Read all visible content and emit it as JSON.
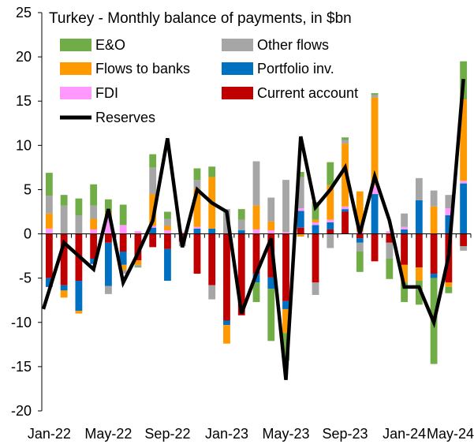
{
  "chart_data": {
    "type": "bar",
    "subtype": "stacked-bar-with-line",
    "title": "Turkey - Monthly balance of payments, in $bn",
    "xlabel": "",
    "ylabel": "",
    "ylim": [
      -20,
      25
    ],
    "yticks": [
      -20,
      -15,
      -10,
      -5,
      0,
      5,
      10,
      15,
      20,
      25
    ],
    "grid": false,
    "legend_position": "top-left",
    "categories": [
      "Jan-22",
      "Feb-22",
      "Mar-22",
      "Apr-22",
      "May-22",
      "Jun-22",
      "Jul-22",
      "Aug-22",
      "Sep-22",
      "Oct-22",
      "Nov-22",
      "Dec-22",
      "Jan-23",
      "Feb-23",
      "Mar-23",
      "Apr-23",
      "May-23",
      "Jun-23",
      "Jul-23",
      "Aug-23",
      "Sep-23",
      "Oct-23",
      "Nov-23",
      "Dec-23",
      "Jan-24",
      "Feb-24",
      "Mar-24",
      "Apr-24",
      "May-24"
    ],
    "x_tick_labels": [
      "Jan-22",
      "",
      "",
      "",
      "May-22",
      "",
      "",
      "",
      "Sep-22",
      "",
      "",
      "",
      "Jan-23",
      "",
      "",
      "",
      "May-23",
      "",
      "",
      "",
      "Sep-23",
      "",
      "",
      "",
      "Jan-24",
      "",
      "",
      "",
      "May-24"
    ],
    "series": [
      {
        "name": "Current account",
        "kind": "bar",
        "color": "#C00000",
        "values": [
          -5.0,
          -5.8,
          -5.3,
          -2.8,
          -1.0,
          -2.0,
          -3.0,
          -1.5,
          -1.7,
          -0.9,
          -4.5,
          -5.8,
          -9.8,
          -9.2,
          -4.5,
          -4.9,
          -7.6,
          0.7,
          -5.5,
          0.5,
          2.5,
          -0.5,
          -3.1,
          -1.0,
          -3.5,
          -3.8,
          -4.5,
          -5.5,
          -1.4
        ]
      },
      {
        "name": "Portfolio inv.",
        "kind": "bar",
        "color": "#0070C0",
        "values": [
          -1.0,
          -0.6,
          -3.4,
          -0.6,
          -4.9,
          -1.5,
          0.0,
          0.7,
          -3.6,
          0.0,
          0.6,
          0.6,
          -0.5,
          0.4,
          -1.0,
          -1.3,
          -0.9,
          1.9,
          1.0,
          0.8,
          0.3,
          -0.5,
          4.5,
          0.0,
          0.5,
          3.8,
          -0.5,
          2.1,
          5.7
        ]
      },
      {
        "name": "FDI",
        "kind": "bar",
        "color": "#FF99FF",
        "values": [
          0.6,
          0.0,
          0.0,
          0.5,
          1.9,
          1.0,
          0.3,
          0.2,
          0.4,
          0.2,
          0.2,
          0.0,
          0.0,
          0.0,
          0.5,
          0.4,
          0.2,
          0.3,
          0.3,
          0.3,
          0.3,
          0.3,
          1.0,
          0.3,
          0.3,
          0.0,
          0.0,
          0.8,
          0.3
        ]
      },
      {
        "name": "Flows to banks",
        "kind": "bar",
        "color": "#FF9900",
        "values": [
          1.7,
          -0.8,
          -0.3,
          1.2,
          0.5,
          -0.6,
          -0.5,
          3.6,
          0.5,
          0.0,
          4.3,
          5.8,
          -2.1,
          0.0,
          2.7,
          1.0,
          -2.7,
          -0.3,
          0.3,
          3.9,
          7.1,
          4.5,
          9.9,
          0.0,
          -2.0,
          -1.5,
          3.1,
          -0.5,
          9.2
        ]
      },
      {
        "name": "Other flows",
        "kind": "bar",
        "color": "#A6A6A6",
        "values": [
          2.0,
          3.2,
          2.1,
          1.5,
          -0.9,
          -0.4,
          -0.2,
          3.0,
          0.8,
          -0.5,
          1.0,
          -1.6,
          2.8,
          1.2,
          5.0,
          2.7,
          5.9,
          3.5,
          -1.4,
          -1.6,
          0.4,
          -1.0,
          0.3,
          -1.8,
          1.5,
          2.5,
          1.8,
          1.5,
          -0.5
        ]
      },
      {
        "name": "E&O",
        "kind": "bar",
        "color": "#70AD47",
        "values": [
          2.6,
          1.2,
          1.9,
          2.4,
          1.5,
          2.3,
          -0.1,
          1.5,
          0.8,
          0.0,
          1.3,
          1.2,
          0.0,
          1.2,
          -2.2,
          -5.9,
          -3.1,
          0.6,
          2.0,
          2.6,
          0.3,
          -2.3,
          0.2,
          -2.3,
          -2.2,
          -2.7,
          -9.7,
          -0.7,
          4.3
        ]
      },
      {
        "name": "Reserves",
        "kind": "line",
        "color": "#000000",
        "values": [
          -8.5,
          -1.0,
          -2.5,
          -4.0,
          2.8,
          -5.5,
          -2.2,
          1.5,
          10.8,
          -1.5,
          5.0,
          3.5,
          2.5,
          -9.0,
          -4.5,
          -0.5,
          -16.5,
          11.0,
          3.0,
          5.0,
          7.5,
          0.0,
          6.5,
          1.5,
          -6.0,
          -6.0,
          -10.0,
          -2.5,
          17.5
        ]
      }
    ]
  }
}
